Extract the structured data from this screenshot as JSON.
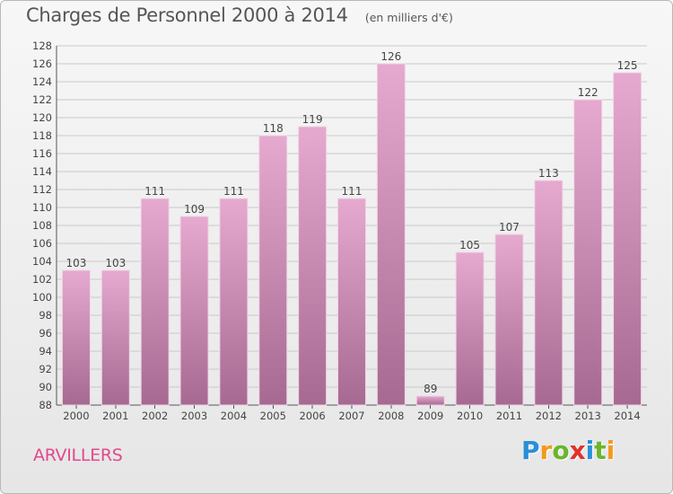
{
  "header": {
    "title": "Charges de Personnel 2000 à 2014",
    "subtitle": "(en milliers d'€)"
  },
  "location": "ARVILLERS",
  "brand": {
    "letters": [
      "P",
      "r",
      "o",
      "x",
      "i",
      "t",
      "i"
    ],
    "colors": [
      "#2a8fd8",
      "#f29a1e",
      "#6bb52b",
      "#e0322b",
      "#2a8fd8",
      "#6bb52b",
      "#f29a1e"
    ]
  },
  "colors": {
    "bar_top": "#e6a9cf",
    "bar_bottom": "#a66a92",
    "accent": "#e04a8c"
  },
  "chart_data": {
    "type": "bar",
    "title": "Charges de Personnel 2000 à 2014",
    "subtitle": "(en milliers d'€)",
    "categories": [
      "2000",
      "2001",
      "2002",
      "2003",
      "2004",
      "2005",
      "2006",
      "2007",
      "2008",
      "2009",
      "2010",
      "2011",
      "2012",
      "2013",
      "2014"
    ],
    "values": [
      103,
      103,
      111,
      109,
      111,
      118,
      119,
      111,
      126,
      89,
      105,
      107,
      113,
      122,
      125
    ],
    "ylim": [
      88,
      128
    ],
    "yticks": [
      88,
      90,
      92,
      94,
      96,
      98,
      100,
      102,
      104,
      106,
      108,
      110,
      112,
      114,
      116,
      118,
      120,
      122,
      124,
      126,
      128
    ],
    "grid": true,
    "xlabel": "",
    "ylabel": ""
  }
}
